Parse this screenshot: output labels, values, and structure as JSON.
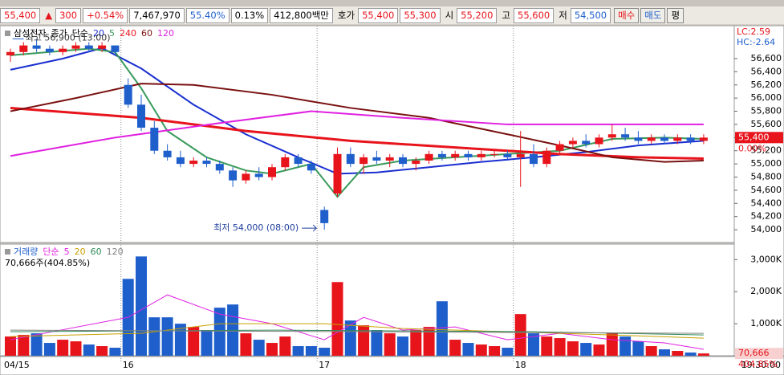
{
  "header": {
    "price": "55,400",
    "arrow": "▲",
    "change": "300",
    "rate": "+0.54%",
    "volume": "7,467,970",
    "ratio": "55.40%",
    "turnover": "0.13%",
    "amount": "412,800백만",
    "ask_label": "호가",
    "ask": "55,400",
    "bid": "55,300",
    "open_label": "시",
    "open": "55,200",
    "high_label": "고",
    "high": "55,600",
    "low_label": "저",
    "low": "54,500",
    "buttons": [
      "매수",
      "매도",
      "평"
    ]
  },
  "chart_data": [
    {
      "type": "candlestick",
      "title": "삼성전자",
      "price_label": "종가",
      "ma_label": "단순",
      "categories": [
        "04/15",
        null,
        null,
        null,
        null,
        null,
        null,
        null,
        null,
        "16",
        null,
        null,
        null,
        null,
        null,
        null,
        null,
        null,
        null,
        null,
        null,
        null,
        null,
        null,
        "17",
        null,
        null,
        null,
        null,
        null,
        null,
        null,
        null,
        null,
        null,
        null,
        null,
        null,
        null,
        "18",
        null,
        null,
        null,
        null,
        null,
        null,
        null,
        null,
        null,
        null,
        null,
        null,
        null,
        null
      ],
      "open": [
        56650,
        56700,
        56800,
        56750,
        56700,
        56750,
        56800,
        56750,
        56800,
        56200,
        55900,
        55550,
        55200,
        55100,
        55000,
        55050,
        55000,
        54900,
        54750,
        54850,
        54800,
        54950,
        55100,
        55000,
        54300,
        54550,
        55150,
        55000,
        55100,
        55050,
        55100,
        55000,
        55050,
        55150,
        55100,
        55150,
        55100,
        55150,
        55150,
        55100,
        55150,
        55000,
        55200,
        55300,
        55350,
        55300,
        55400,
        55450,
        55400,
        55350,
        55400,
        55350,
        55400,
        55350
      ],
      "high": [
        56750,
        56850,
        56900,
        56800,
        56800,
        56850,
        56850,
        56850,
        56800,
        56300,
        56050,
        55650,
        55300,
        55200,
        55100,
        55100,
        55050,
        54950,
        54900,
        54950,
        55000,
        55150,
        55150,
        55050,
        54350,
        55250,
        55250,
        55150,
        55200,
        55150,
        55150,
        55100,
        55200,
        55200,
        55200,
        55200,
        55200,
        55200,
        55200,
        55500,
        55300,
        55250,
        55350,
        55400,
        55450,
        55450,
        55600,
        55550,
        55500,
        55450,
        55450,
        55450,
        55450,
        55450
      ],
      "low": [
        56550,
        56650,
        56700,
        56650,
        56650,
        56700,
        56700,
        56700,
        56650,
        55850,
        55500,
        55150,
        55050,
        54950,
        54950,
        54950,
        54850,
        54650,
        54700,
        54750,
        54750,
        54900,
        54950,
        54850,
        54000,
        54500,
        54950,
        54850,
        55000,
        54950,
        54950,
        54900,
        55000,
        55050,
        55050,
        55050,
        55050,
        55100,
        55050,
        54650,
        54950,
        54950,
        55150,
        55250,
        55250,
        55250,
        55350,
        55350,
        55300,
        55300,
        55300,
        55300,
        55300,
        55300
      ],
      "close": [
        56700,
        56800,
        56750,
        56700,
        56750,
        56800,
        56750,
        56800,
        56700,
        55900,
        55550,
        55200,
        55100,
        55000,
        55050,
        55000,
        54900,
        54750,
        54850,
        54800,
        54950,
        55100,
        55000,
        54900,
        54100,
        55150,
        55000,
        55100,
        55050,
        55100,
        55000,
        55050,
        55150,
        55100,
        55150,
        55100,
        55150,
        55150,
        55100,
        55150,
        55000,
        55200,
        55300,
        55350,
        55300,
        55400,
        55450,
        55400,
        55350,
        55400,
        55350,
        55400,
        55350,
        55400
      ],
      "up_color": "#e8141c",
      "down_color": "#1f5fcc",
      "ylim": [
        53830,
        57100
      ],
      "yticks": [
        {
          "value": 54000,
          "label": "54,000"
        },
        {
          "value": 54200,
          "label": "54,200"
        },
        {
          "value": 54400,
          "label": "54,400"
        },
        {
          "value": 54600,
          "label": "54,600"
        },
        {
          "value": 54800,
          "label": "54,800"
        },
        {
          "value": 55000,
          "label": "55,000"
        },
        {
          "value": 55200,
          "label": "55,200"
        },
        {
          "value": 55400,
          "label": "55,400"
        },
        {
          "value": 55600,
          "label": "55,600"
        },
        {
          "value": 55800,
          "label": "55,800"
        },
        {
          "value": 56000,
          "label": "56,000"
        },
        {
          "value": 56200,
          "label": "56,200"
        },
        {
          "value": 56400,
          "label": "56,400"
        },
        {
          "value": 56600,
          "label": "56,600"
        }
      ],
      "series": [
        {
          "name": "20",
          "color": "#1a2fd0",
          "x": [
            0,
            4,
            7,
            10,
            14,
            18,
            22,
            25,
            28,
            32,
            36,
            40,
            44,
            48,
            53
          ],
          "values": [
            56430,
            56600,
            56760,
            56450,
            55900,
            55450,
            55100,
            54850,
            54870,
            54950,
            55030,
            55100,
            55180,
            55280,
            55350
          ]
        },
        {
          "name": "5",
          "color": "#3a9a5b",
          "x": [
            0,
            3,
            6,
            8,
            10,
            12,
            15,
            18,
            20,
            23,
            25,
            27,
            30,
            34,
            38,
            42,
            46,
            50,
            53
          ],
          "values": [
            56650,
            56700,
            56750,
            56700,
            56150,
            55500,
            55100,
            54900,
            54850,
            55000,
            54500,
            54950,
            55050,
            55100,
            55150,
            55200,
            55380,
            55400,
            55380
          ]
        },
        {
          "name": "240",
          "color": "#e8141c",
          "x": [
            0,
            10,
            18,
            26,
            34,
            42,
            48,
            53
          ],
          "values": [
            55850,
            55700,
            55500,
            55350,
            55250,
            55150,
            55100,
            55080
          ]
        },
        {
          "name": "60",
          "color": "#7a1010",
          "x": [
            0,
            5,
            10,
            14,
            20,
            26,
            32,
            38,
            42,
            46,
            50,
            53
          ],
          "values": [
            55800,
            56000,
            56220,
            56200,
            56050,
            55850,
            55700,
            55450,
            55280,
            55100,
            55030,
            55050
          ]
        },
        {
          "name": "120",
          "color": "#e020e0",
          "x": [
            0,
            8,
            16,
            23,
            30,
            38,
            46,
            53
          ],
          "values": [
            55120,
            55400,
            55620,
            55800,
            55700,
            55600,
            55600,
            55600
          ]
        }
      ],
      "annotations": [
        {
          "text": "최고 56,900 (13:00)",
          "x": 2,
          "value": 56900
        },
        {
          "text": "최저 54,000 (08:00)",
          "x": 24,
          "value": 54000
        }
      ],
      "lc": "LC:2.59",
      "hc": "HC:-2.64",
      "current": {
        "value": 55400,
        "label": "55,400"
      },
      "current_rate": "0.00%"
    },
    {
      "type": "bar",
      "title": "거래량",
      "ma_label": "단순",
      "info": "70,666주(404.85%)",
      "values": [
        600000,
        650000,
        700000,
        400000,
        500000,
        450000,
        350000,
        300000,
        250000,
        2400000,
        3100000,
        1200000,
        1200000,
        1000000,
        900000,
        800000,
        1500000,
        1600000,
        700000,
        500000,
        400000,
        600000,
        300000,
        300000,
        250000,
        2300000,
        1100000,
        950000,
        800000,
        700000,
        600000,
        800000,
        900000,
        1700000,
        500000,
        400000,
        350000,
        300000,
        250000,
        1300000,
        700000,
        600000,
        550000,
        450000,
        400000,
        350000,
        700000,
        600000,
        450000,
        300000,
        200000,
        150000,
        100000,
        70666
      ],
      "ylim": [
        0,
        3460000
      ],
      "yticks": [
        {
          "value": 1000000,
          "label": "1,000K"
        },
        {
          "value": 2000000,
          "label": "2,000K"
        },
        {
          "value": 3000000,
          "label": "3,000K"
        }
      ],
      "series": [
        {
          "name": "5",
          "color": "#e020e0",
          "x": [
            0,
            9,
            12,
            16,
            20,
            24,
            27,
            30,
            34,
            38,
            42,
            46,
            50,
            53
          ],
          "values": [
            500000,
            1200000,
            1900000,
            1300000,
            1000000,
            500000,
            1200000,
            800000,
            900000,
            500000,
            700000,
            500000,
            400000,
            200000
          ]
        },
        {
          "name": "20",
          "color": "#c8a000",
          "x": [
            0,
            10,
            16,
            24,
            30,
            38,
            46,
            53
          ],
          "values": [
            600000,
            700000,
            1000000,
            1000000,
            850000,
            750000,
            650000,
            550000
          ]
        },
        {
          "name": "60",
          "color": "#2e8b57",
          "x": [
            0,
            20,
            40,
            53
          ],
          "values": [
            750000,
            800000,
            750000,
            650000
          ]
        },
        {
          "name": "120",
          "color": "#808080",
          "x": [
            0,
            53
          ],
          "values": [
            800000,
            700000
          ]
        }
      ],
      "current": {
        "value": 70666,
        "label": "70,666"
      },
      "current_rate": "404.85%",
      "time_label": "19:30:00"
    }
  ]
}
